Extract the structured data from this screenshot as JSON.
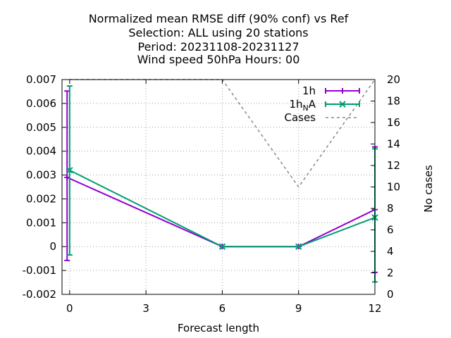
{
  "chart_data": {
    "type": "line",
    "title_lines": [
      "Normalized mean RMSE diff (90% conf) vs Ref",
      "Selection: ALL using    20 stations",
      "Period: 20231108-20231127",
      "Wind speed 50hPa   Hours:  00"
    ],
    "xlabel": "Forecast length",
    "ylabel": "",
    "y2label": "No cases",
    "xlim": [
      -0.3,
      12
    ],
    "ylim": [
      -0.002,
      0.007
    ],
    "y2lim": [
      0,
      20
    ],
    "xticks": [
      0,
      3,
      6,
      9,
      12
    ],
    "xtick_labels": [
      "0",
      "3",
      "6",
      "9",
      "12"
    ],
    "yticks": [
      -0.002,
      -0.001,
      0,
      0.001,
      0.002,
      0.003,
      0.004,
      0.005,
      0.006,
      0.007
    ],
    "ytick_labels": [
      "-0.002",
      "-0.001",
      "0",
      "0.001",
      "0.002",
      "0.003",
      "0.004",
      "0.005",
      "0.006",
      "0.007"
    ],
    "y2ticks": [
      0,
      2,
      4,
      6,
      8,
      10,
      12,
      14,
      16,
      18,
      20
    ],
    "y2tick_labels": [
      "0",
      "2",
      "4",
      "6",
      "8",
      "10",
      "12",
      "14",
      "16",
      "18",
      "20"
    ],
    "grid": true,
    "legend_position": "top-right",
    "series": [
      {
        "name": "1h",
        "legend_main": "1h",
        "legend_sub": "",
        "legend_tail": "",
        "color": "#9400d3",
        "marker": "plus",
        "axis": "y1",
        "x": [
          -0.1,
          6,
          9,
          12
        ],
        "y": [
          0.0029,
          0.0,
          0.0,
          0.00155
        ],
        "err_low": [
          -0.00058,
          null,
          null,
          -0.00108
        ],
        "err_high": [
          0.00652,
          null,
          null,
          0.00418
        ]
      },
      {
        "name": "1h_NA",
        "legend_main": "1h",
        "legend_sub": "N",
        "legend_tail": "A",
        "color": "#009e73",
        "marker": "x",
        "axis": "y1",
        "x": [
          0,
          6,
          9,
          12
        ],
        "y": [
          0.0032,
          0.0,
          0.0,
          0.00122
        ],
        "err_low": [
          -0.00035,
          null,
          null,
          -0.00148
        ],
        "err_high": [
          0.00673,
          null,
          null,
          0.0041
        ]
      },
      {
        "name": "Cases",
        "legend_main": "Cases",
        "legend_sub": "",
        "legend_tail": "",
        "color": "#888888",
        "style": "dashed",
        "axis": "y2",
        "x": [
          0,
          6,
          9,
          12
        ],
        "y": [
          20,
          20,
          10,
          20
        ]
      }
    ]
  }
}
